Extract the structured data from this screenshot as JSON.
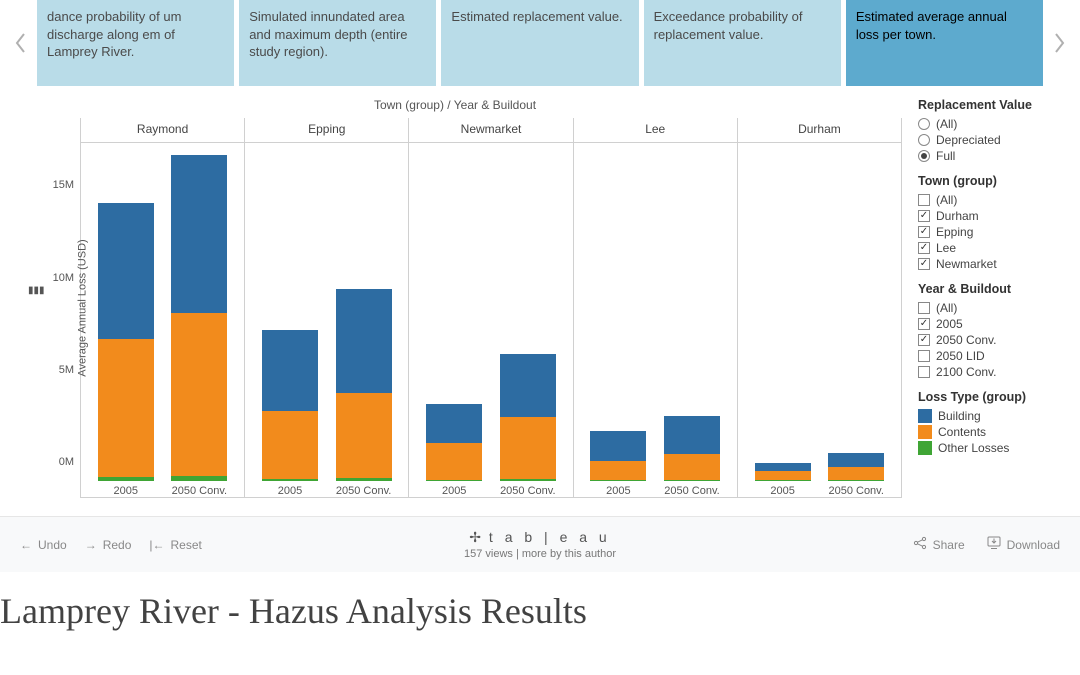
{
  "tabs": [
    {
      "label": "dance probability of um discharge along em of Lamprey River.",
      "active": false
    },
    {
      "label": "Simulated innundated area and maximum depth (entire study region).",
      "active": false
    },
    {
      "label": "Estimated replacement value.",
      "active": false
    },
    {
      "label": "Exceedance probability of replacement value.",
      "active": false
    },
    {
      "label": "Estimated average annual loss per town.",
      "active": true
    }
  ],
  "chart": {
    "title": "Town (group)  /  Year & Buildout",
    "y_axis_label": "Average Annual Loss (USD)",
    "y_max": 18000000,
    "y_ticks": [
      {
        "v": 0,
        "label": "0M"
      },
      {
        "v": 5000000,
        "label": "5M"
      },
      {
        "v": 10000000,
        "label": "10M"
      },
      {
        "v": 15000000,
        "label": "15M"
      }
    ],
    "x_categories": [
      "2005",
      "2050 Conv."
    ],
    "colors": {
      "Building": "#2d6ca2",
      "Contents": "#f28b1c",
      "Other Losses": "#3fa535",
      "grid": "#d0d0d0",
      "bg": "#ffffff"
    },
    "towns": [
      {
        "name": "Raymond",
        "bars": [
          {
            "Other Losses": 200000,
            "Contents": 7500000,
            "Building": 7400000
          },
          {
            "Other Losses": 250000,
            "Contents": 8850000,
            "Building": 8600000
          }
        ]
      },
      {
        "name": "Epping",
        "bars": [
          {
            "Other Losses": 120000,
            "Contents": 3700000,
            "Building": 4350000
          },
          {
            "Other Losses": 140000,
            "Contents": 4650000,
            "Building": 5600000
          }
        ]
      },
      {
        "name": "Newmarket",
        "bars": [
          {
            "Other Losses": 80000,
            "Contents": 2000000,
            "Building": 2100000
          },
          {
            "Other Losses": 110000,
            "Contents": 3350000,
            "Building": 3450000
          }
        ]
      },
      {
        "name": "Lee",
        "bars": [
          {
            "Other Losses": 50000,
            "Contents": 1050000,
            "Building": 1600000
          },
          {
            "Other Losses": 60000,
            "Contents": 1400000,
            "Building": 2050000
          }
        ]
      },
      {
        "name": "Durham",
        "bars": [
          {
            "Other Losses": 30000,
            "Contents": 520000,
            "Building": 420000
          },
          {
            "Other Losses": 40000,
            "Contents": 700000,
            "Building": 780000
          }
        ]
      }
    ]
  },
  "filters": {
    "replacement_value": {
      "title": "Replacement Value",
      "options": [
        {
          "label": "(All)",
          "selected": false
        },
        {
          "label": "Depreciated",
          "selected": false
        },
        {
          "label": "Full",
          "selected": true
        }
      ]
    },
    "town_group": {
      "title": "Town (group)",
      "options": [
        {
          "label": "(All)",
          "checked": false,
          "visibleCheck": false
        },
        {
          "label": "Durham",
          "checked": true
        },
        {
          "label": "Epping",
          "checked": true
        },
        {
          "label": "Lee",
          "checked": true
        },
        {
          "label": "Newmarket",
          "checked": true
        }
      ]
    },
    "year_buildout": {
      "title": "Year & Buildout",
      "options": [
        {
          "label": "(All)",
          "checked": false,
          "visibleCheck": false
        },
        {
          "label": "2005",
          "checked": true
        },
        {
          "label": "2050 Conv.",
          "checked": true
        },
        {
          "label": "2050 LID",
          "checked": false,
          "visibleCheck": false
        },
        {
          "label": "2100 Conv.",
          "checked": false,
          "visibleCheck": false
        }
      ]
    },
    "loss_type": {
      "title": "Loss Type (group)",
      "items": [
        "Building",
        "Contents",
        "Other Losses"
      ]
    }
  },
  "toolbar": {
    "undo": "Undo",
    "redo": "Redo",
    "reset": "Reset",
    "logo": "t a b | e a u",
    "views_text": "157 views  |  more by this author",
    "share": "Share",
    "download": "Download"
  },
  "page_heading": "Lamprey River - Hazus Analysis Results"
}
